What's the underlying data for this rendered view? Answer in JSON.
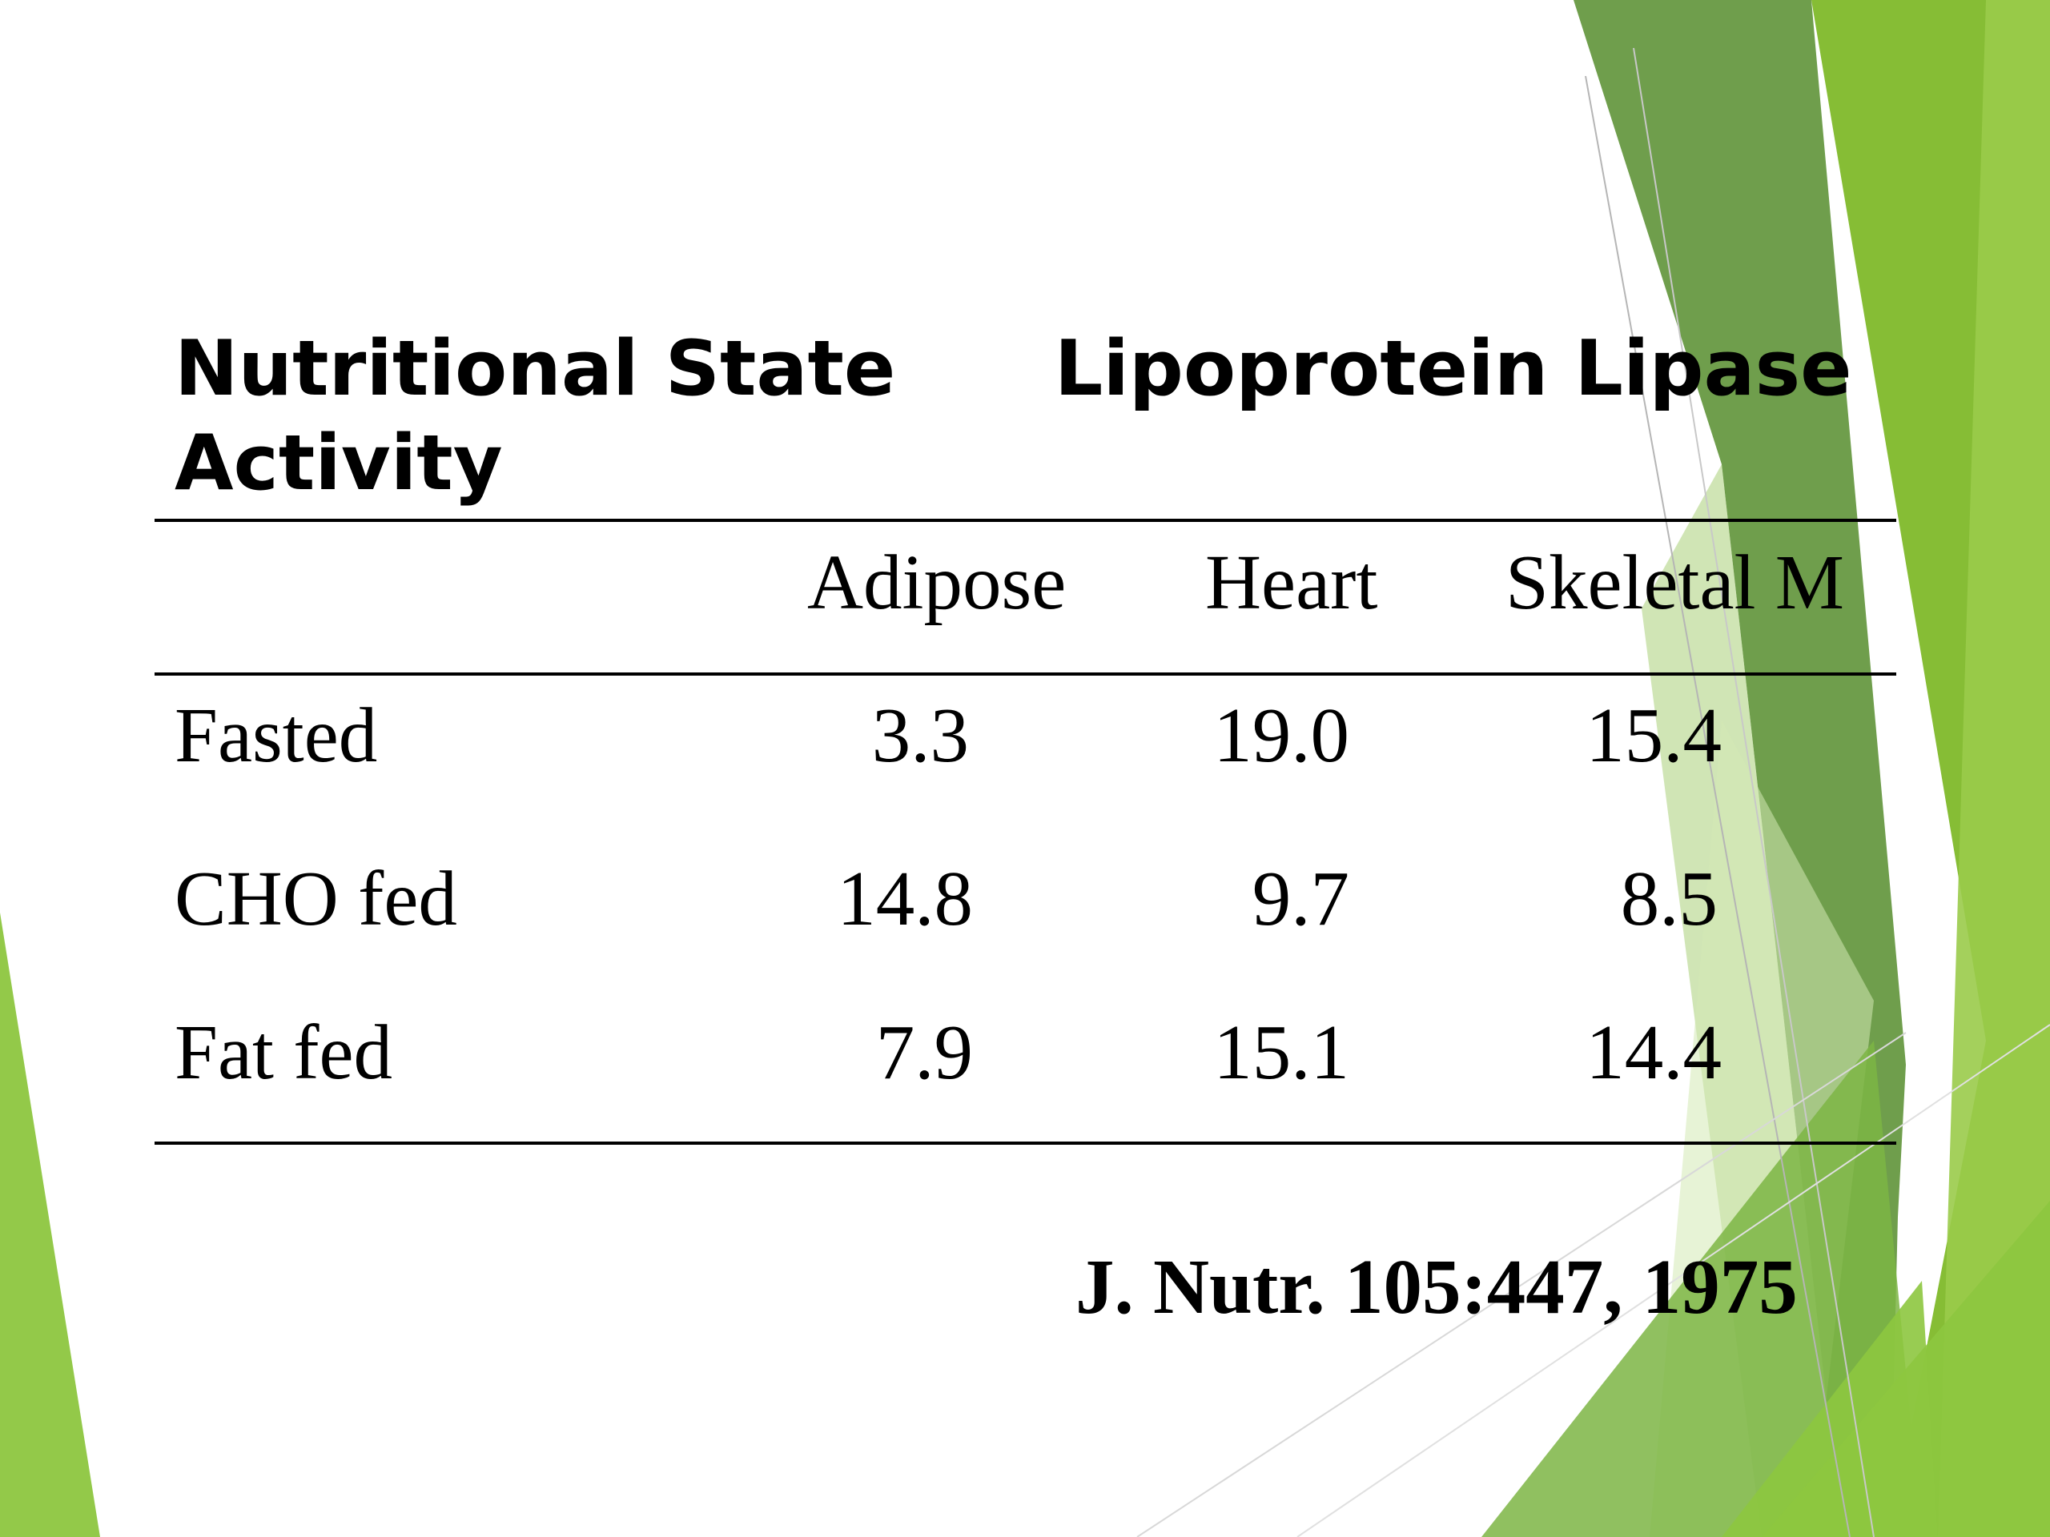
{
  "slide": {
    "heading_line1": "Nutritional State      Lipoprotein Lipase",
    "heading_line2": "Activity"
  },
  "table": {
    "columns": [
      "Adipose",
      "Heart",
      "Skeletal M"
    ],
    "rows": [
      {
        "label": "Fasted",
        "values": [
          "3.3",
          "19.0",
          "15.4"
        ]
      },
      {
        "label": "CHO fed",
        "values": [
          "14.8",
          "9.7",
          "8.5"
        ]
      },
      {
        "label": "Fat fed",
        "values": [
          "7.9",
          "15.1",
          "14.4"
        ]
      }
    ]
  },
  "citation": "J. Nutr. 105:447, 1975",
  "theme": {
    "accent_dark": "#6a9a48",
    "accent_mid": "#7fb23d",
    "accent_bright": "#8dc63f",
    "accent_light": "#c8e3a4",
    "text": "#000000",
    "background": "#ffffff"
  }
}
